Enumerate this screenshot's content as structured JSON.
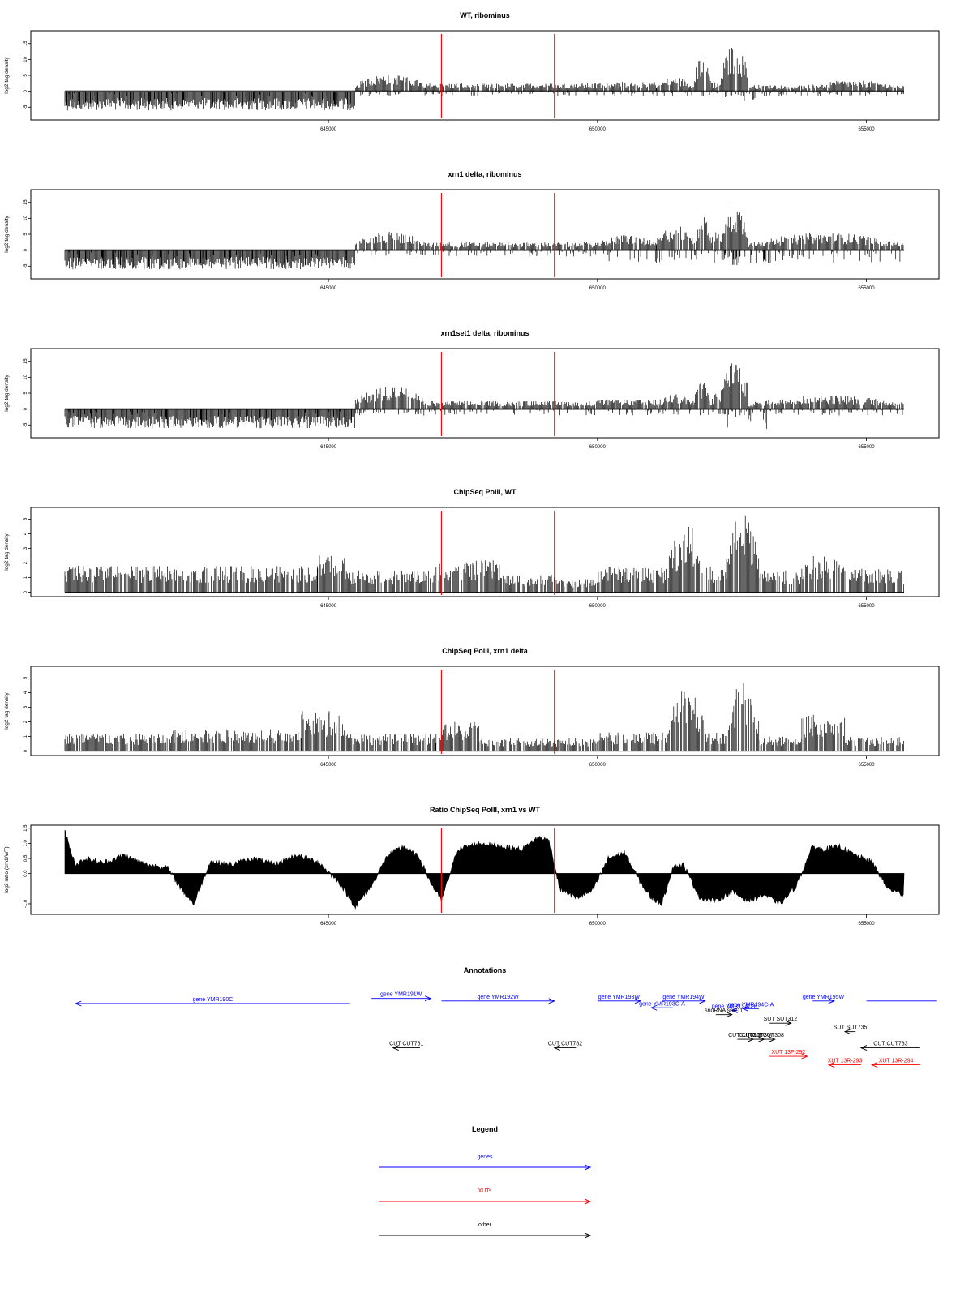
{
  "colors": {
    "genes": "#0000ff",
    "xuts": "#ff0000",
    "other": "#000000",
    "marker": "#ff0000",
    "signal": "#000000"
  },
  "markers": [
    647100,
    649200
  ],
  "xaxis": {
    "range": [
      640100,
      655700
    ],
    "ticks": [
      "645000",
      "650000",
      "655000"
    ],
    "tick_values": [
      645000,
      650000,
      655000
    ]
  },
  "chart_data": [
    {
      "type": "bar",
      "title": "WT, ribominus",
      "ylabel": "log2 tag density",
      "ylim": [
        -9,
        19
      ],
      "yticks": [
        "-5",
        "0",
        "5",
        "10",
        "15"
      ],
      "ytick_values": [
        -5,
        0,
        5,
        10,
        15
      ],
      "signal": "strand",
      "segments": [
        [
          640100,
          645500,
          -6,
          0.3
        ],
        [
          645500,
          646800,
          0.3,
          5.5
        ],
        [
          646800,
          650000,
          0.3,
          2.5
        ],
        [
          650000,
          651100,
          0.3,
          3
        ],
        [
          651100,
          651800,
          0.3,
          4.5
        ],
        [
          651800,
          652100,
          0.3,
          12
        ],
        [
          652100,
          652300,
          0.3,
          3
        ],
        [
          652300,
          652800,
          0.3,
          15
        ],
        [
          652800,
          653800,
          0.3,
          2
        ],
        [
          653800,
          655700,
          0.3,
          3.5
        ]
      ],
      "neg": [
        [
          640100,
          645500,
          -5.5
        ],
        [
          645500,
          655700,
          -1.5
        ],
        [
          652300,
          653200,
          -3
        ]
      ]
    },
    {
      "type": "bar",
      "title": "xrn1 delta, ribominus",
      "ylabel": "log2 tag density",
      "ylim": [
        -9,
        19
      ],
      "yticks": [
        "-5",
        "0",
        "5",
        "10",
        "15"
      ],
      "ytick_values": [
        -5,
        0,
        5,
        10,
        15
      ],
      "signal": "strand",
      "segments": [
        [
          640100,
          645500,
          -6,
          0.3
        ],
        [
          645500,
          646800,
          0.3,
          6
        ],
        [
          646800,
          650000,
          0.3,
          2.5
        ],
        [
          650000,
          651100,
          0.3,
          5
        ],
        [
          651100,
          651800,
          0.3,
          8
        ],
        [
          651800,
          652100,
          0.3,
          11
        ],
        [
          652100,
          652300,
          0.3,
          6
        ],
        [
          652300,
          652800,
          0.3,
          15
        ],
        [
          652800,
          655700,
          0.3,
          5.5
        ]
      ],
      "neg": [
        [
          640100,
          645500,
          -5.5
        ],
        [
          645500,
          650000,
          -2
        ],
        [
          650000,
          655700,
          -4
        ],
        [
          652300,
          653200,
          -5
        ]
      ]
    },
    {
      "type": "bar",
      "title": "xrn1set1 delta, ribominus",
      "ylabel": "log2 tag density",
      "ylim": [
        -9,
        19
      ],
      "yticks": [
        "-5",
        "0",
        "5",
        "10",
        "15"
      ],
      "ytick_values": [
        -5,
        0,
        5,
        10,
        15
      ],
      "signal": "strand",
      "segments": [
        [
          640100,
          645500,
          -6,
          0.3
        ],
        [
          645500,
          646800,
          0.3,
          7.5
        ],
        [
          646800,
          650000,
          0.3,
          2.5
        ],
        [
          650000,
          651100,
          0.3,
          3
        ],
        [
          651100,
          651800,
          0.3,
          5
        ],
        [
          651800,
          652100,
          0.3,
          9
        ],
        [
          652100,
          652300,
          0.3,
          5
        ],
        [
          652300,
          652800,
          0.3,
          16
        ],
        [
          652800,
          655700,
          0.3,
          4.5
        ]
      ],
      "neg": [
        [
          640100,
          645500,
          -5.5
        ],
        [
          645500,
          655700,
          -2
        ],
        [
          652300,
          653200,
          -7
        ]
      ]
    },
    {
      "type": "bar",
      "title": "ChipSeq PolII, WT",
      "ylabel": "log2 tag density",
      "ylim": [
        -0.3,
        5.8
      ],
      "yticks": [
        "0",
        "1",
        "2",
        "3",
        "4",
        "5"
      ],
      "ytick_values": [
        0,
        1,
        2,
        3,
        4,
        5
      ],
      "signal": "positive",
      "segments": [
        [
          640100,
          644800,
          0,
          1.8
        ],
        [
          644800,
          645300,
          0,
          2.6
        ],
        [
          645300,
          647000,
          0,
          1.5
        ],
        [
          647000,
          648200,
          0,
          2.2
        ],
        [
          648200,
          649200,
          0,
          1.2
        ],
        [
          649200,
          650000,
          0,
          0.9
        ],
        [
          650000,
          651300,
          0,
          1.8
        ],
        [
          651300,
          652000,
          0,
          4.8
        ],
        [
          652000,
          652400,
          0,
          1.8
        ],
        [
          652400,
          653000,
          0,
          5.6
        ],
        [
          653000,
          653800,
          0,
          1.5
        ],
        [
          653800,
          654600,
          0,
          2.5
        ],
        [
          654600,
          655700,
          0,
          1.6
        ]
      ]
    },
    {
      "type": "bar",
      "title": "ChipSeq PolII, xrn1 delta",
      "ylabel": "log2 tag density",
      "ylim": [
        -0.3,
        5.8
      ],
      "yticks": [
        "0",
        "1",
        "2",
        "3",
        "4",
        "5"
      ],
      "ytick_values": [
        0,
        1,
        2,
        3,
        4,
        5
      ],
      "signal": "positive",
      "segments": [
        [
          640100,
          642000,
          0,
          1.2
        ],
        [
          642000,
          644500,
          0,
          1.5
        ],
        [
          644500,
          645300,
          0,
          2.8
        ],
        [
          645300,
          647000,
          0,
          1.2
        ],
        [
          647000,
          647800,
          0,
          2
        ],
        [
          647800,
          650000,
          0,
          0.9
        ],
        [
          650000,
          651300,
          0,
          1.3
        ],
        [
          651300,
          652000,
          0,
          4.3
        ],
        [
          652000,
          652400,
          0,
          1.3
        ],
        [
          652400,
          653000,
          0,
          4.8
        ],
        [
          653000,
          653800,
          0,
          1
        ],
        [
          653800,
          654600,
          0,
          2.6
        ],
        [
          654600,
          655700,
          0,
          1
        ]
      ]
    },
    {
      "type": "area",
      "title": "Ratio ChipSeq PolII, xrn1 vs WT",
      "ylabel": "log2 ratio (xrn1/WT)",
      "ylim": [
        -1.35,
        1.6
      ],
      "yticks": [
        "-1.0",
        "0.0",
        "0.5",
        "1.0",
        "1.5"
      ],
      "ytick_values": [
        -1,
        0,
        0.5,
        1,
        1.5
      ],
      "signal": "ratio",
      "x": [
        640100,
        640200,
        640300,
        640500,
        640800,
        641200,
        641600,
        642000,
        642300,
        642500,
        642800,
        643200,
        643600,
        644000,
        644400,
        644800,
        645200,
        645500,
        645800,
        646100,
        646400,
        646700,
        646900,
        647100,
        647400,
        647800,
        648200,
        648600,
        648900,
        649100,
        649300,
        649600,
        649900,
        650200,
        650500,
        650800,
        651000,
        651200,
        651400,
        651600,
        651900,
        652200,
        652500,
        652800,
        653100,
        653400,
        653700,
        654000,
        654200,
        654500,
        654800,
        655100,
        655400,
        655700
      ],
      "y": [
        1.4,
        0.8,
        0.3,
        0.5,
        0.35,
        0.6,
        0.3,
        0.2,
        -0.6,
        -1.0,
        0.4,
        0.3,
        0.5,
        0.3,
        0.6,
        0.4,
        -0.3,
        -1.1,
        -0.4,
        0.6,
        0.9,
        0.5,
        -0.3,
        -0.9,
        0.8,
        1.0,
        0.9,
        0.8,
        1.2,
        1.1,
        -0.5,
        -0.8,
        -0.6,
        0.5,
        0.7,
        -0.3,
        -0.8,
        -1.0,
        0.2,
        0.3,
        -0.8,
        -0.9,
        -0.6,
        -0.9,
        -0.7,
        -1.0,
        -0.4,
        0.9,
        0.8,
        0.9,
        0.6,
        0.4,
        -0.5,
        -0.7
      ]
    }
  ],
  "annotations": {
    "title": "Annotations",
    "features": [
      {
        "label": "gene YMR190C",
        "start": 645400,
        "end": 640300,
        "row": 0,
        "kind": "genes"
      },
      {
        "label": "gene YMR191W",
        "start": 645800,
        "end": 646900,
        "row": -0.6,
        "kind": "genes"
      },
      {
        "label": "gene YMR192W",
        "start": 647100,
        "end": 649200,
        "row": -0.3,
        "kind": "genes"
      },
      {
        "label": "gene YMR193W",
        "start": 650000,
        "end": 650800,
        "row": -0.3,
        "kind": "genes"
      },
      {
        "label": "gene YMR193C-A",
        "start": 651400,
        "end": 651000,
        "row": 0.5,
        "kind": "genes"
      },
      {
        "label": "gene YMR194W",
        "start": 651200,
        "end": 652000,
        "row": -0.3,
        "kind": "genes"
      },
      {
        "label": "gene YMR194C-A",
        "start": 653000,
        "end": 652700,
        "row": 0.6,
        "kind": "genes"
      },
      {
        "label": "gene YMR194C-B",
        "start": 652600,
        "end": 652500,
        "row": 0.8,
        "kind": "genes"
      },
      {
        "label": "gene YMR195W",
        "start": 654000,
        "end": 654400,
        "row": -0.3,
        "kind": "genes"
      },
      {
        "label": "",
        "start": 655000,
        "end": 656300,
        "row": -0.3,
        "kind": "genes"
      },
      {
        "label": "snoRNA snR11",
        "start": 652200,
        "end": 652500,
        "row": 1.3,
        "kind": "other"
      },
      {
        "label": "SUT SUT312",
        "start": 653200,
        "end": 653600,
        "row": 2.3,
        "kind": "other"
      },
      {
        "label": "SUT SUT735",
        "start": 654800,
        "end": 654600,
        "row": 3.3,
        "kind": "other"
      },
      {
        "label": "CUT CUT306",
        "start": 652600,
        "end": 652900,
        "row": 4.2,
        "kind": "other"
      },
      {
        "label": "CUT CUT307",
        "start": 652800,
        "end": 653100,
        "row": 4.2,
        "kind": "other"
      },
      {
        "label": "CUT CUT308",
        "start": 653000,
        "end": 653300,
        "row": 4.2,
        "kind": "other"
      },
      {
        "label": "CUT CUT781",
        "start": 646700,
        "end": 646200,
        "row": 5.2,
        "kind": "other"
      },
      {
        "label": "CUT CUT782",
        "start": 649600,
        "end": 649200,
        "row": 5.2,
        "kind": "other"
      },
      {
        "label": "CUT CUT783",
        "start": 656000,
        "end": 654900,
        "row": 5.2,
        "kind": "other"
      },
      {
        "label": "XUT 13F-292",
        "start": 653200,
        "end": 653900,
        "row": 6.2,
        "kind": "xuts"
      },
      {
        "label": "XUT 13R-293",
        "start": 654900,
        "end": 654300,
        "row": 7.2,
        "kind": "xuts"
      },
      {
        "label": "XUT 13R-294",
        "start": 656000,
        "end": 655100,
        "row": 7.2,
        "kind": "xuts"
      }
    ]
  },
  "legend": {
    "title": "Legend",
    "items": [
      {
        "label": "genes",
        "kind": "genes"
      },
      {
        "label": "XUTs",
        "kind": "xuts"
      },
      {
        "label": "other",
        "kind": "other"
      }
    ]
  }
}
